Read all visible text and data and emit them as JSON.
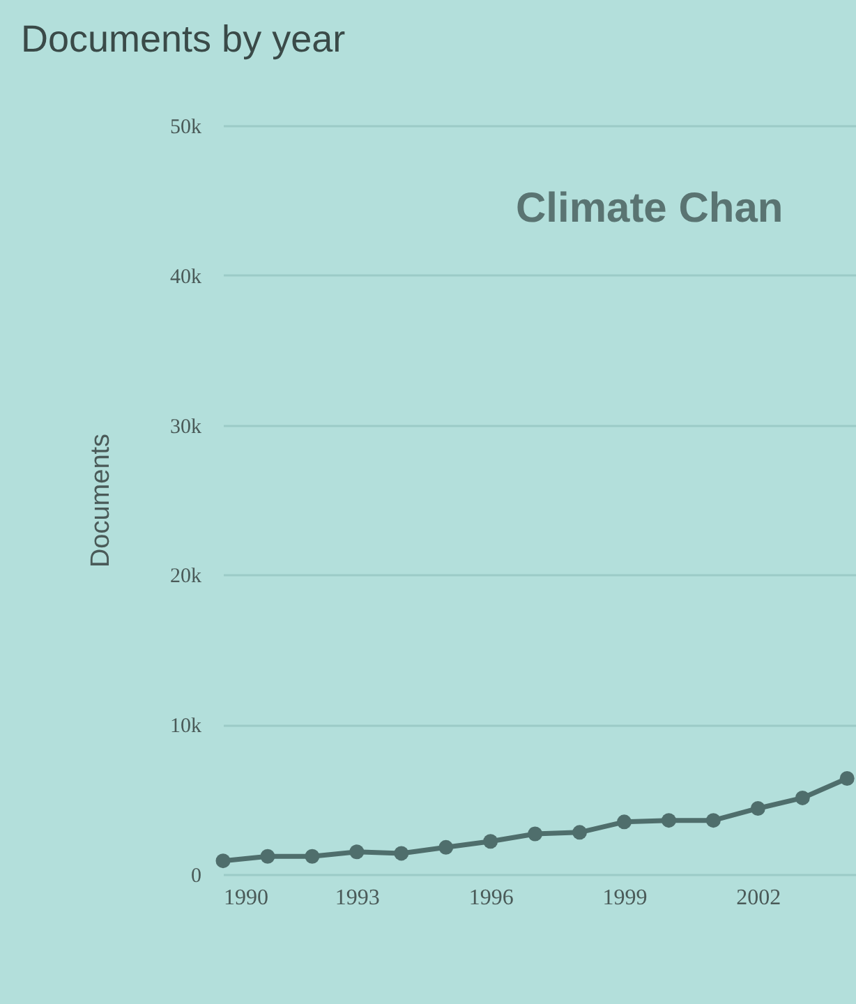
{
  "chart_data": {
    "type": "line",
    "title": "Documents by year",
    "ylabel": "Documents",
    "annotations": [
      "Climate Chan"
    ],
    "x": [
      1990,
      1991,
      1992,
      1993,
      1994,
      1995,
      1996,
      1997,
      1998,
      1999,
      2000,
      2001,
      2002,
      2003,
      2004
    ],
    "series": [
      {
        "color": "#4f6e6c",
        "values": [
          900,
          1200,
          1200,
          1500,
          1400,
          1800,
          2200,
          2700,
          2800,
          3500,
          3600,
          3600,
          4400,
          5100,
          6400
        ]
      }
    ],
    "xlim": [
      1990,
      2004.2
    ],
    "xticks": [
      1990,
      1993,
      1996,
      1999,
      2002
    ],
    "ylim": [
      0,
      50000
    ],
    "yticks": [
      {
        "value": 0,
        "label": "0"
      },
      {
        "value": 10000,
        "label": "10k"
      },
      {
        "value": 20000,
        "label": "20k"
      },
      {
        "value": 30000,
        "label": "30k"
      },
      {
        "value": 40000,
        "label": "40k"
      },
      {
        "value": 50000,
        "label": "50k"
      }
    ],
    "grid": "y",
    "marker": "circle",
    "line_style": "solid"
  }
}
